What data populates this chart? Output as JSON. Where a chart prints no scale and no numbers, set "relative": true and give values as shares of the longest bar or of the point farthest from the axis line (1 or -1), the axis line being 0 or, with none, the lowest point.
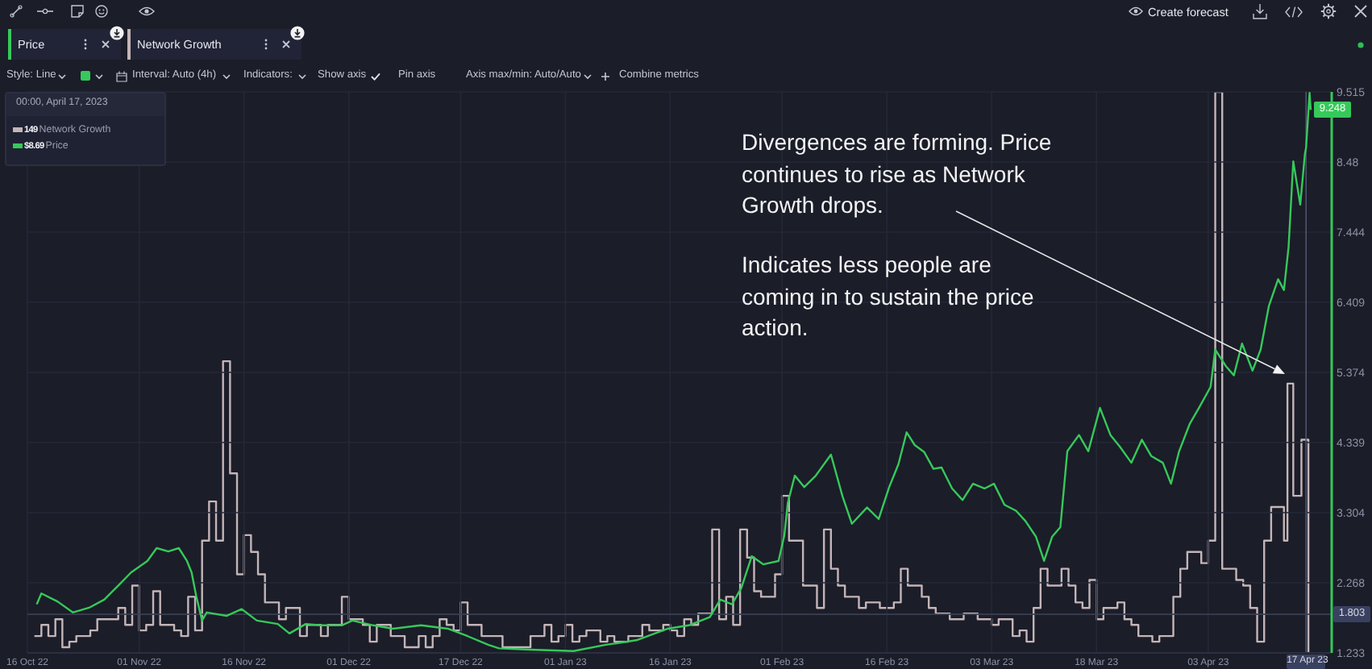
{
  "chart_data": [
    {
      "type": "line",
      "legend": "top left",
      "legend_title": "00:00, April 17, 2023",
      "grid": true,
      "xlim": [
        "2022-10-16",
        "2023-04-20T16:00"
      ],
      "xticks": [
        {
          "value": "2022-10-16",
          "label": "16 Oct 22"
        },
        {
          "value": "2022-11-01",
          "label": "01 Nov 22"
        },
        {
          "value": "2022-11-16",
          "label": "16 Nov 22"
        },
        {
          "value": "2022-12-01",
          "label": "01 Dec 22"
        },
        {
          "value": "2022-12-17",
          "label": "17 Dec 22"
        },
        {
          "value": "2023-01-01",
          "label": "01 Jan 23"
        },
        {
          "value": "2023-01-16",
          "label": "16 Jan 23"
        },
        {
          "value": "2023-02-01",
          "label": "01 Feb 23"
        },
        {
          "value": "2023-02-16",
          "label": "16 Feb 23"
        },
        {
          "value": "2023-03-03",
          "label": "03 Mar 23"
        },
        {
          "value": "2023-03-18",
          "label": "18 Mar 23"
        },
        {
          "value": "2023-04-03",
          "label": "03 Apr 23"
        }
      ],
      "ylim": [
        1.233,
        9.515
      ],
      "yticks": [
        1.233,
        2.268,
        3.304,
        4.339,
        5.374,
        6.409,
        7.444,
        8.48,
        9.515
      ],
      "series": [
        {
          "name": "Price",
          "color": "#36c95a",
          "x": [
            "2022-10-17T08:00",
            "2022-10-18T00:00",
            "2022-10-20T08:00",
            "2022-10-22T12:00",
            "2022-10-24T20:00",
            "2022-10-27T00:00",
            "2022-10-29T08:00",
            "2022-10-30T20:00",
            "2022-11-02T04:00",
            "2022-11-03T12:00",
            "2022-11-05T04:00",
            "2022-11-06T16:00",
            "2022-11-07T20:00",
            "2022-11-08T12:00",
            "2022-11-09T04:00",
            "2022-11-10T00:00",
            "2022-11-10T16:00",
            "2022-11-13T12:00",
            "2022-11-15T16:00",
            "2022-11-17T20:00",
            "2022-11-20T20:00",
            "2022-11-22T12:00",
            "2022-11-24T20:00",
            "2022-11-27T00:00",
            "2022-11-30T00:00",
            "2022-12-01T12:00",
            "2022-12-04T12:00",
            "2022-12-07T08:00",
            "2022-12-11T08:00",
            "2022-12-15T04:00",
            "2022-12-18T00:00",
            "2022-12-21T00:00",
            "2022-12-22T12:00",
            "2022-12-27T00:00",
            "2023-01-02T04:00",
            "2023-01-06T16:00",
            "2023-01-11T04:00",
            "2023-01-15T16:00",
            "2023-01-18T16:00",
            "2023-01-21T16:00",
            "2023-01-23T04:00",
            "2023-01-24T20:00",
            "2023-01-26T04:00",
            "2023-01-27T16:00",
            "2023-01-29T08:00",
            "2023-01-31T12:00",
            "2023-02-01T08:00",
            "2023-02-01T20:00",
            "2023-02-02T20:00",
            "2023-02-04T04:00",
            "2023-02-05T20:00",
            "2023-02-08T00:00",
            "2023-02-09T16:00",
            "2023-02-11T00:00",
            "2023-02-13T04:00",
            "2023-02-14T20:00",
            "2023-02-16T08:00",
            "2023-02-17T16:00",
            "2023-02-18T20:00",
            "2023-02-20T00:00",
            "2023-02-21T08:00",
            "2023-02-22T16:00",
            "2023-02-23T20:00",
            "2023-02-25T08:00",
            "2023-02-26T20:00",
            "2023-02-28T08:00",
            "2023-03-02T00:00",
            "2023-03-03T08:00",
            "2023-03-04T20:00",
            "2023-03-06T12:00",
            "2023-03-07T20:00",
            "2023-03-09T08:00",
            "2023-03-10T12:00",
            "2023-03-11T16:00",
            "2023-03-12T20:00",
            "2023-03-13T20:00",
            "2023-03-15T12:00",
            "2023-03-16T20:00",
            "2023-03-18T12:00",
            "2023-03-20T00:00",
            "2023-03-21T08:00",
            "2023-03-23T00:00",
            "2023-03-24T12:00",
            "2023-03-25T20:00",
            "2023-03-27T12:00",
            "2023-03-28T16:00",
            "2023-03-29T20:00",
            "2023-03-31T08:00",
            "2023-04-01T16:00",
            "2023-04-03T08:00",
            "2023-04-04T00:00",
            "2023-04-05T12:00",
            "2023-04-06T16:00",
            "2023-04-07T20:00",
            "2023-04-09T08:00",
            "2023-04-10T12:00",
            "2023-04-11T16:00",
            "2023-04-13T00:00",
            "2023-04-13T20:00",
            "2023-04-14T12:00",
            "2023-04-15T04:00",
            "2023-04-16T04:00",
            "2023-04-16T20:00",
            "2023-04-17T00:00",
            "2023-04-17T12:00",
            "2023-04-17T16:00"
          ],
          "values": [
            1.95,
            2.11,
            1.99,
            1.83,
            1.9,
            2.02,
            2.26,
            2.42,
            2.59,
            2.78,
            2.73,
            2.78,
            2.59,
            2.42,
            2.07,
            1.71,
            1.83,
            1.78,
            1.88,
            1.71,
            1.66,
            1.52,
            1.66,
            1.64,
            1.64,
            1.71,
            1.64,
            1.59,
            1.64,
            1.59,
            1.48,
            1.35,
            1.3,
            1.28,
            1.26,
            1.35,
            1.42,
            1.59,
            1.64,
            1.76,
            2.02,
            1.95,
            2.19,
            2.66,
            2.54,
            2.59,
            2.97,
            3.45,
            3.85,
            3.68,
            3.85,
            4.16,
            3.54,
            3.14,
            3.38,
            3.21,
            3.68,
            4.02,
            4.49,
            4.3,
            4.2,
            3.95,
            3.97,
            3.66,
            3.49,
            3.73,
            3.66,
            3.73,
            3.42,
            3.33,
            3.18,
            2.95,
            2.59,
            2.95,
            3.09,
            4.21,
            4.45,
            4.21,
            4.85,
            4.45,
            4.28,
            4.04,
            4.38,
            4.14,
            4.04,
            3.73,
            4.21,
            4.61,
            4.85,
            5.16,
            5.71,
            5.47,
            5.33,
            5.8,
            5.4,
            5.71,
            6.35,
            6.75,
            6.59,
            7.23,
            8.49,
            7.85,
            8.6,
            8.69,
            9.5,
            9.248
          ],
          "value_labels": [
            null,
            null,
            null,
            null,
            null,
            null,
            null,
            null,
            null,
            null,
            null,
            null,
            null,
            null,
            null,
            null,
            null,
            null,
            null,
            null,
            null,
            null,
            null,
            null,
            null,
            null,
            null,
            null,
            null,
            null,
            null,
            null,
            null,
            null,
            null,
            null,
            null,
            null,
            null,
            null,
            null,
            null,
            null,
            null,
            null,
            null,
            null,
            null,
            null,
            null,
            null,
            null,
            null,
            null,
            null,
            null,
            null,
            null,
            null,
            null,
            null,
            null,
            null,
            null,
            null,
            null,
            null,
            null,
            null,
            null,
            null,
            null,
            null,
            null,
            null,
            null,
            null,
            null,
            null,
            null,
            null,
            null,
            null,
            null,
            null,
            null,
            null,
            null,
            null,
            null,
            null,
            null,
            null,
            null,
            null,
            null,
            null,
            null,
            null,
            null,
            null,
            null,
            null,
            null,
            null,
            "9.248"
          ]
        }
      ],
      "ref_lines": [
        {
          "axis": "x",
          "value": "2023-04-17T00:00",
          "label": "17 Apr 23",
          "color": "#4f556b"
        },
        {
          "axis": "y",
          "value": 1.803,
          "label": "1.803",
          "color": "#3a3f52"
        }
      ],
      "annotations": [
        "Divergences are forming. Price continues to rise as Network Growth drops.",
        "Indicates less people are coming in to sustain the price action.",
        "$8.69",
        "Create forecast",
        "Style: Line",
        "Interval: Auto (4h)",
        "Indicators:",
        "Show axis",
        "Pin axis",
        "Axis max/min: Auto/Auto",
        "Combine metrics"
      ]
    },
    {
      "type": "step",
      "relative": true,
      "legend": "top left",
      "xlim": [
        "2022-10-16",
        "2023-04-20T16:00"
      ],
      "series": [
        {
          "name": "Network Growth",
          "color": "#c4b5b7",
          "x": [
            "2022-10-17",
            "2022-10-18",
            "2022-10-19",
            "2022-10-20",
            "2022-10-21",
            "2022-10-22",
            "2022-10-23",
            "2022-10-25",
            "2022-10-26",
            "2022-10-29",
            "2022-10-30",
            "2022-10-31",
            "2022-11-01",
            "2022-11-02",
            "2022-11-03",
            "2022-11-04",
            "2022-11-06",
            "2022-11-07",
            "2022-11-08",
            "2022-11-09",
            "2022-11-10",
            "2022-11-11",
            "2022-11-12",
            "2022-11-13",
            "2022-11-14",
            "2022-11-15",
            "2022-11-16",
            "2022-11-17",
            "2022-11-18",
            "2022-11-19",
            "2022-11-21",
            "2022-11-22",
            "2022-11-24",
            "2022-11-25",
            "2022-11-27",
            "2022-11-28",
            "2022-11-30",
            "2022-12-01",
            "2022-12-03",
            "2022-12-04",
            "2022-12-05",
            "2022-12-07",
            "2022-12-09",
            "2022-12-11",
            "2022-12-12",
            "2022-12-13",
            "2022-12-14",
            "2022-12-15",
            "2022-12-16",
            "2022-12-17",
            "2022-12-18",
            "2022-12-20",
            "2022-12-23",
            "2022-12-27",
            "2022-12-29",
            "2022-12-30",
            "2022-12-31",
            "2023-01-01",
            "2023-01-02",
            "2023-01-03",
            "2023-01-04",
            "2023-01-06",
            "2023-01-07",
            "2023-01-08",
            "2023-01-10",
            "2023-01-12",
            "2023-01-13",
            "2023-01-15",
            "2023-01-16",
            "2023-01-17",
            "2023-01-18",
            "2023-01-19",
            "2023-01-20",
            "2023-01-22",
            "2023-01-23",
            "2023-01-24",
            "2023-01-25",
            "2023-01-26",
            "2023-01-27",
            "2023-01-28",
            "2023-01-29",
            "2023-01-31",
            "2023-02-01",
            "2023-02-02",
            "2023-02-04",
            "2023-02-06",
            "2023-02-07",
            "2023-02-08",
            "2023-02-09",
            "2023-02-10",
            "2023-02-12",
            "2023-02-13",
            "2023-02-15",
            "2023-02-17",
            "2023-02-18",
            "2023-02-19",
            "2023-02-21",
            "2023-02-22",
            "2023-02-23",
            "2023-02-25",
            "2023-02-27",
            "2023-03-01",
            "2023-03-03",
            "2023-03-04",
            "2023-03-06",
            "2023-03-07",
            "2023-03-08",
            "2023-03-09",
            "2023-03-10",
            "2023-03-11",
            "2023-03-13",
            "2023-03-14",
            "2023-03-15",
            "2023-03-16",
            "2023-03-17",
            "2023-03-18",
            "2023-03-19",
            "2023-03-21",
            "2023-03-22",
            "2023-03-23",
            "2023-03-24",
            "2023-03-26",
            "2023-03-27",
            "2023-03-29",
            "2023-03-30",
            "2023-03-31",
            "2023-04-02",
            "2023-04-03",
            "2023-04-04",
            "2023-04-05",
            "2023-04-07",
            "2023-04-08",
            "2023-04-09",
            "2023-04-10",
            "2023-04-11",
            "2023-04-12",
            "2023-04-13T20:00",
            "2023-04-14T08:00",
            "2023-04-15T04:00",
            "2023-04-16T08:00",
            "2023-04-17T08:00"
          ],
          "values": [
            0.03,
            0.05,
            0.03,
            0.06,
            0.01,
            0.02,
            0.03,
            0.04,
            0.06,
            0.08,
            0.05,
            0.12,
            0.04,
            0.05,
            0.11,
            0.05,
            0.04,
            0.03,
            0.1,
            0.04,
            0.2,
            0.27,
            0.2,
            0.52,
            0.32,
            0.14,
            0.21,
            0.18,
            0.14,
            0.09,
            0.06,
            0.08,
            0.03,
            0.05,
            0.03,
            0.05,
            0.1,
            0.06,
            0.05,
            0.02,
            0.05,
            0.03,
            0.01,
            0.03,
            0.01,
            0.03,
            0.06,
            0.05,
            0.04,
            0.09,
            0.05,
            0.03,
            0.01,
            0.03,
            0.05,
            0.02,
            0.03,
            0.05,
            0.02,
            0.03,
            0.04,
            0.02,
            0.03,
            0.02,
            0.03,
            0.05,
            0.04,
            0.05,
            0.04,
            0.03,
            0.06,
            0.05,
            0.07,
            0.22,
            0.06,
            0.1,
            0.05,
            0.22,
            0.17,
            0.11,
            0.1,
            0.14,
            0.28,
            0.2,
            0.12,
            0.08,
            0.22,
            0.15,
            0.12,
            0.1,
            0.08,
            0.09,
            0.08,
            0.09,
            0.15,
            0.12,
            0.1,
            0.08,
            0.07,
            0.06,
            0.07,
            0.06,
            0.05,
            0.06,
            0.03,
            0.04,
            0.02,
            0.08,
            0.15,
            0.12,
            0.15,
            0.12,
            0.09,
            0.08,
            0.13,
            0.06,
            0.08,
            0.09,
            0.06,
            0.05,
            0.03,
            0.02,
            0.03,
            0.1,
            0.15,
            0.18,
            0.16,
            0.2,
            1,
            0.15,
            0.13,
            0.12,
            0.08,
            0.02,
            0.2,
            0.26,
            0.2,
            0.48,
            0.28,
            0.38,
            0
          ]
        }
      ],
      "annotations": [
        "149"
      ]
    }
  ]
}
